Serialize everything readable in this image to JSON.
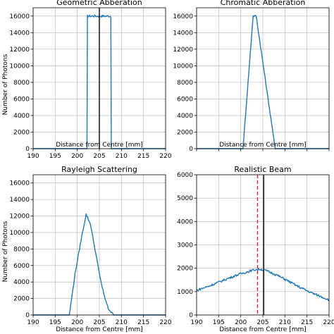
{
  "figure": {
    "ylabel_left": "Number of Photons"
  },
  "chart_data": [
    {
      "type": "line",
      "title": "Geometric Abberation",
      "xlabel": "Distance from Centre [mm]",
      "ylabel": "Number of Photons",
      "xlim": [
        190,
        220
      ],
      "ylim": [
        0,
        17000
      ],
      "xticks": [
        190,
        195,
        200,
        205,
        210,
        215,
        220
      ],
      "yticks": [
        0,
        2000,
        4000,
        6000,
        8000,
        10000,
        12000,
        14000,
        16000
      ],
      "show_xtick_labels": true,
      "show_ytick_labels": true,
      "grid": true,
      "line_color": "#1f77b4",
      "series": [
        {
          "x": [
            190,
            202.2,
            202.3,
            207.6,
            207.7,
            220
          ],
          "y": [
            0,
            0,
            16000,
            16000,
            0,
            0
          ]
        }
      ],
      "vlines": [
        {
          "x": 205,
          "color": "#000000",
          "style": "solid"
        }
      ]
    },
    {
      "type": "line",
      "title": "Chromatic Abberation",
      "xlabel": "Distance from Centre [mm]",
      "ylabel": "",
      "xlim": [
        190,
        220
      ],
      "ylim": [
        0,
        17000
      ],
      "xticks": [
        190,
        195,
        200,
        205,
        210,
        215,
        220
      ],
      "yticks": [
        0,
        2000,
        4000,
        6000,
        8000,
        10000,
        12000,
        14000,
        16000
      ],
      "show_xtick_labels": false,
      "show_ytick_labels": true,
      "grid": true,
      "line_color": "#1f77b4",
      "series": [
        {
          "x": [
            190,
            200.5,
            202.8,
            203.5,
            207.8,
            220
          ],
          "y": [
            0,
            0,
            16000,
            16000,
            0,
            0
          ]
        }
      ],
      "vlines": []
    },
    {
      "type": "line",
      "title": "Rayleigh Scattering",
      "xlabel": "Distance from Centre [mm]",
      "ylabel": "Number of Photons",
      "xlim": [
        190,
        220
      ],
      "ylim": [
        0,
        17000
      ],
      "xticks": [
        190,
        195,
        200,
        205,
        210,
        215,
        220
      ],
      "yticks": [
        0,
        2000,
        4000,
        6000,
        8000,
        10000,
        12000,
        14000,
        16000
      ],
      "show_xtick_labels": true,
      "show_ytick_labels": true,
      "grid": true,
      "line_color": "#1f77b4",
      "series": [
        {
          "x": [
            190,
            198.2,
            199.5,
            201,
            202,
            203,
            204,
            205,
            206,
            207,
            208.2,
            220
          ],
          "y": [
            0,
            0,
            5000,
            9500,
            12200,
            11000,
            8000,
            5000,
            2500,
            800,
            0,
            0
          ]
        }
      ],
      "vlines": []
    },
    {
      "type": "line",
      "title": "Realistic Beam",
      "xlabel": "Distance from Centre [mm]",
      "ylabel": "",
      "xlim": [
        190,
        220
      ],
      "ylim": [
        0,
        6000
      ],
      "xticks": [
        190,
        195,
        200,
        205,
        210,
        215,
        220
      ],
      "yticks": [
        0,
        1000,
        2000,
        3000,
        4000,
        5000,
        6000
      ],
      "show_xtick_labels": true,
      "show_ytick_labels": true,
      "grid": true,
      "line_color": "#1f77b4",
      "series": [
        {
          "x": [
            190,
            193,
            196,
            199,
            201,
            203,
            204.2,
            205,
            206,
            208,
            210,
            213,
            216,
            218,
            220
          ],
          "y": [
            1050,
            1250,
            1480,
            1700,
            1820,
            1930,
            1960,
            1940,
            1880,
            1720,
            1530,
            1220,
            950,
            800,
            650
          ]
        }
      ],
      "vlines": [
        {
          "x": 203.8,
          "color": "#d62728",
          "style": "dashed"
        },
        {
          "x": 205.2,
          "color": "#000000",
          "style": "solid"
        }
      ]
    }
  ]
}
